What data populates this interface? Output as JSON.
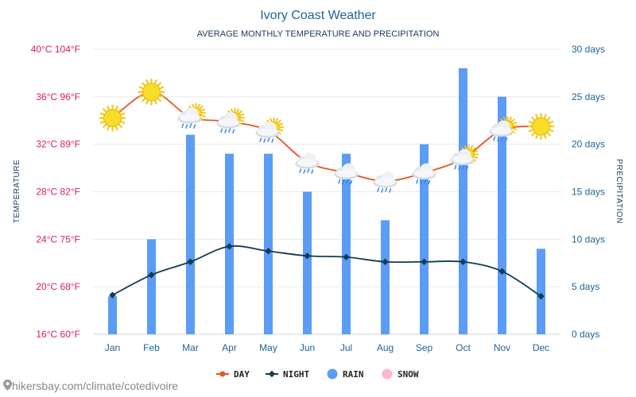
{
  "chart_data": {
    "type": "bar+line",
    "title": "Ivory Coast Weather",
    "subtitle": "AVERAGE MONTHLY TEMPERATURE AND PRECIPITATION",
    "ylabel_left": "TEMPERATURE",
    "ylabel_right": "PRECIPITATION",
    "categories": [
      "Jan",
      "Feb",
      "Mar",
      "Apr",
      "May",
      "Jun",
      "Jul",
      "Aug",
      "Sep",
      "Oct",
      "Nov",
      "Dec"
    ],
    "y_left_ticks": [
      "16°C 60°F",
      "20°C 68°F",
      "24°C 75°F",
      "28°C 82°F",
      "32°C 89°F",
      "36°C 96°F",
      "40°C 104°F"
    ],
    "y_left_range_c": [
      16,
      40
    ],
    "y_right_ticks": [
      "0 days",
      "5 days",
      "10 days",
      "15 days",
      "20 days",
      "25 days",
      "30 days"
    ],
    "y_right_range_days": [
      0,
      30
    ],
    "series": [
      {
        "name": "DAY",
        "type": "line",
        "unit": "°C",
        "color": "#e8541e",
        "values": [
          34.2,
          36.4,
          34.3,
          33.9,
          33.1,
          30.5,
          29.6,
          28.9,
          29.6,
          30.8,
          33.2,
          33.5
        ],
        "icons": [
          "sun",
          "sun",
          "sun-cloud-rain",
          "sun-cloud-rain",
          "sun-cloud-rain",
          "cloud-rain",
          "cloud-rain",
          "cloud-rain",
          "cloud-rain",
          "sun-cloud-rain",
          "sun-cloud-rain",
          "sun"
        ]
      },
      {
        "name": "NIGHT",
        "type": "line",
        "unit": "°C",
        "color": "#123c52",
        "values": [
          19.3,
          21.0,
          22.1,
          23.4,
          23.0,
          22.6,
          22.5,
          22.1,
          22.1,
          22.1,
          21.3,
          19.2
        ]
      },
      {
        "name": "RAIN",
        "type": "bar",
        "unit": "days",
        "color": "#5b9cf6",
        "values": [
          4,
          10,
          21,
          19,
          19,
          15,
          19,
          12,
          20,
          28,
          25,
          9
        ]
      },
      {
        "name": "SNOW",
        "type": "bar",
        "unit": "days",
        "color": "#ffb6c8",
        "values": [
          0,
          0,
          0,
          0,
          0,
          0,
          0,
          0,
          0,
          0,
          0,
          0
        ]
      }
    ],
    "legend": {
      "position": "bottom",
      "items": [
        "DAY",
        "NIGHT",
        "RAIN",
        "SNOW"
      ]
    },
    "grid": true
  },
  "source_text": "hikersbay.com/climate/cotedivoire"
}
